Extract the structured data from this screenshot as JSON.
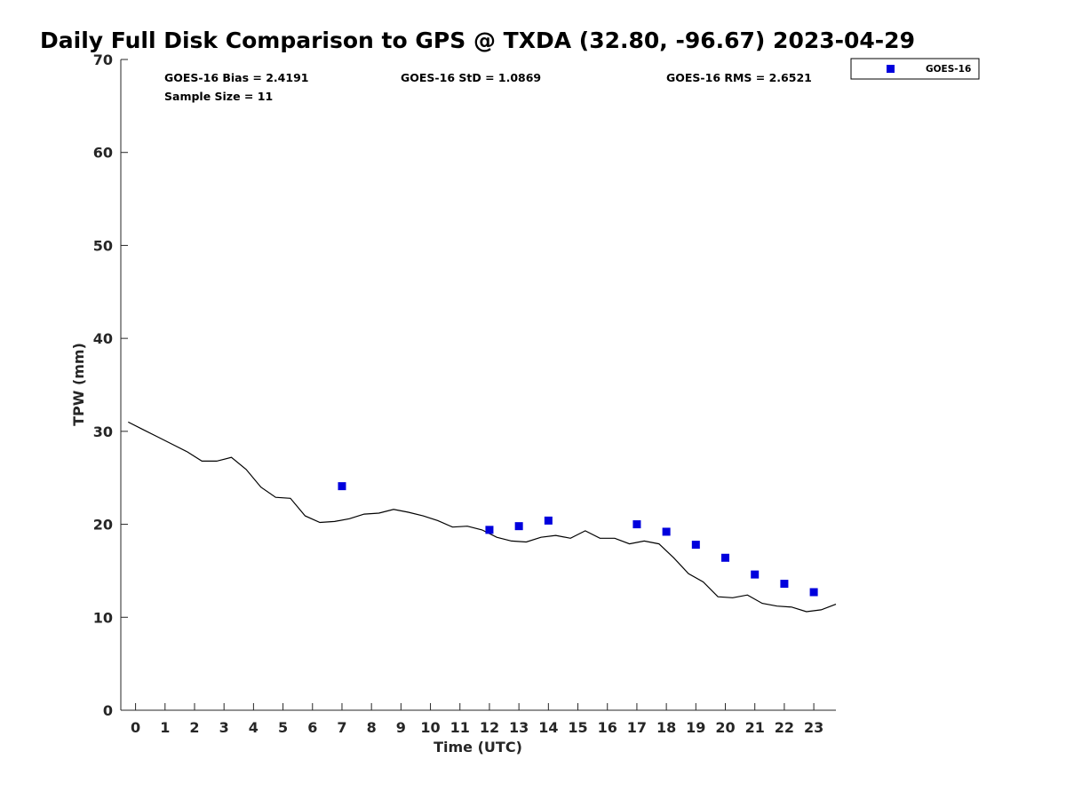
{
  "chart_data": {
    "type": "line",
    "title": "Daily Full Disk Comparison to GPS @ TXDA (32.80, -96.67) 2023-04-29",
    "xlabel": "Time (UTC)",
    "ylabel": "TPW (mm)",
    "xlim": [
      -0.5,
      23.75
    ],
    "ylim": [
      0,
      70
    ],
    "x_ticks": [
      0,
      1,
      2,
      3,
      4,
      5,
      6,
      7,
      8,
      9,
      10,
      11,
      12,
      13,
      14,
      15,
      16,
      17,
      18,
      19,
      20,
      21,
      22,
      23
    ],
    "y_ticks": [
      0,
      10,
      20,
      30,
      40,
      50,
      60,
      70
    ],
    "grid": false,
    "legend_placement": "outside top-right",
    "stats": {
      "bias": "GOES-16 Bias = 2.4191",
      "std": "GOES-16 StD = 1.0869",
      "rms": "GOES-16 RMS = 2.6521",
      "sample": "Sample Size = 11"
    },
    "series": [
      {
        "marker": "line",
        "color": "#000000",
        "x": [
          -0.25,
          0.25,
          0.75,
          1.25,
          1.75,
          2.25,
          2.75,
          3.25,
          3.75,
          4.25,
          4.75,
          5.25,
          5.75,
          6.25,
          6.75,
          7.25,
          7.75,
          8.25,
          8.75,
          9.25,
          9.75,
          10.25,
          10.75,
          11.25,
          11.75,
          12.25,
          12.75,
          13.25,
          13.75,
          14.25,
          14.75,
          15.25,
          15.75,
          16.25,
          16.75,
          17.25,
          17.75,
          18.25,
          18.75,
          19.25,
          19.75,
          20.25,
          20.75,
          21.25,
          21.75,
          22.25,
          22.75,
          23.25,
          23.75
        ],
        "y": [
          31.0,
          30.2,
          29.4,
          28.6,
          27.8,
          26.8,
          26.8,
          27.2,
          25.9,
          24.0,
          22.9,
          22.8,
          20.9,
          20.2,
          20.3,
          20.6,
          21.1,
          21.2,
          21.6,
          21.3,
          20.9,
          20.4,
          19.7,
          19.8,
          19.4,
          18.6,
          18.2,
          18.1,
          18.6,
          18.8,
          18.5,
          19.3,
          18.5,
          18.5,
          17.9,
          18.2,
          17.9,
          16.4,
          14.7,
          13.8,
          12.2,
          12.1,
          12.4,
          11.5,
          11.2,
          11.1,
          10.6,
          10.8,
          11.4
        ]
      },
      {
        "name": "GOES-16",
        "marker": "square",
        "color": "#0000dd",
        "x": [
          7,
          12,
          13,
          14,
          17,
          18,
          19,
          20,
          21,
          22,
          23
        ],
        "y": [
          24.1,
          19.4,
          19.8,
          20.4,
          20.0,
          19.2,
          17.8,
          16.4,
          14.6,
          13.6,
          12.7
        ]
      }
    ]
  }
}
